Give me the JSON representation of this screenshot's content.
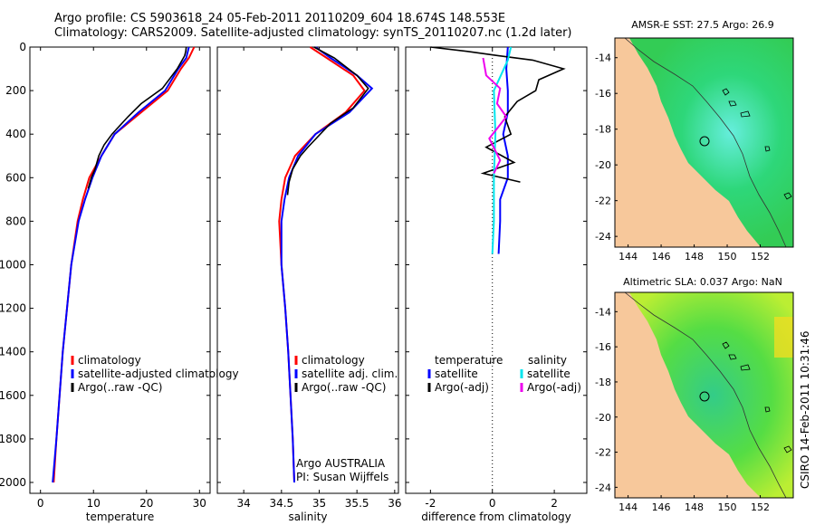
{
  "header": {
    "line1": "Argo profile: CS 5903618_24 05-Feb-2011 20110209_604 18.674S 148.553E",
    "line2": "Climatology: CARS2009. Satellite-adjusted climatology: synTS_20110207.nc (1.2d later)"
  },
  "side_stamp": "CSIRO 14-Feb-2011 10:31:46",
  "colors": {
    "clim": "#ff0000",
    "sat": "#0000ff",
    "argo": "#000000",
    "sat_sal": "#00e5ee",
    "argo_sal": "#ee00ee",
    "land": "#f7c89b"
  },
  "y_axis": {
    "ticks": [
      "0",
      "200",
      "400",
      "600",
      "800",
      "1000",
      "1200",
      "1400",
      "1600",
      "1800",
      "2000"
    ]
  },
  "panels": {
    "temperature": {
      "xlabel": "temperature",
      "ticks": [
        "0",
        "10",
        "20",
        "30"
      ],
      "legend": [
        "climatology",
        "satellite-adjusted climatology",
        "Argo(..raw -QC)"
      ]
    },
    "salinity": {
      "xlabel": "salinity",
      "ticks": [
        "34",
        "34.5",
        "35",
        "35.5",
        "36"
      ],
      "legend": [
        "climatology",
        "satellite adj. clim.",
        "Argo(..raw -QC)"
      ],
      "note1": "Argo AUSTRALIA",
      "note2": "PI: Susan Wijffels"
    },
    "difference": {
      "xlabel": "difference from climatology",
      "ticks": [
        "-2",
        "0",
        "2"
      ],
      "legend_head_t": "temperature",
      "legend_head_s": "salinity",
      "legend_t": [
        "satellite",
        "Argo(-adj)"
      ],
      "legend_s": [
        "satellite",
        "Argo(-adj)"
      ]
    }
  },
  "maps": {
    "sst": {
      "title": "AMSR-E SST: 27.5 Argo: 26.9"
    },
    "sla": {
      "title": "Altimetric SLA: 0.037 Argo: NaN"
    },
    "lon_ticks": [
      "144",
      "146",
      "148",
      "150",
      "152"
    ],
    "lat_ticks": [
      "-14",
      "-16",
      "-18",
      "-20",
      "-22",
      "-24"
    ]
  },
  "chart_data": [
    {
      "type": "line",
      "xlabel": "temperature",
      "ylim": [
        2050,
        0
      ],
      "xlim": [
        -2,
        32
      ],
      "series": [
        {
          "name": "climatology",
          "points": [
            [
              29,
              0
            ],
            [
              28,
              50
            ],
            [
              26.5,
              100
            ],
            [
              24,
              200
            ],
            [
              19,
              300
            ],
            [
              14,
              400
            ],
            [
              11.5,
              500
            ],
            [
              9.2,
              600
            ],
            [
              8,
              700
            ],
            [
              7,
              800
            ],
            [
              5.8,
              1000
            ],
            [
              5,
              1200
            ],
            [
              4.2,
              1400
            ],
            [
              3.6,
              1600
            ],
            [
              3,
              1800
            ],
            [
              2.5,
              2000
            ]
          ]
        },
        {
          "name": "satellite-adjusted climatology",
          "points": [
            [
              28,
              0
            ],
            [
              27.5,
              50
            ],
            [
              26,
              100
            ],
            [
              23.5,
              200
            ],
            [
              18.5,
              300
            ],
            [
              14,
              400
            ],
            [
              11.5,
              500
            ],
            [
              9.8,
              600
            ],
            [
              8.4,
              700
            ],
            [
              7.2,
              800
            ],
            [
              5.8,
              1000
            ],
            [
              5,
              1200
            ],
            [
              4.2,
              1400
            ],
            [
              3.6,
              1600
            ],
            [
              3,
              1800
            ],
            [
              2.3,
              2000
            ]
          ]
        },
        {
          "name": "Argo(..raw -QC)",
          "points": [
            [
              27.5,
              0
            ],
            [
              27.4,
              20
            ],
            [
              27.2,
              40
            ],
            [
              25.8,
              100
            ],
            [
              23,
              190
            ],
            [
              19,
              260
            ],
            [
              16.5,
              320
            ],
            [
              13.5,
              400
            ],
            [
              12,
              450
            ],
            [
              11,
              500
            ],
            [
              10.3,
              560
            ],
            [
              9.6,
              600
            ],
            [
              9,
              650
            ]
          ]
        }
      ]
    },
    {
      "type": "line",
      "xlabel": "salinity",
      "ylim": [
        2050,
        0
      ],
      "xlim": [
        33.65,
        36.05
      ],
      "series": [
        {
          "name": "climatology",
          "points": [
            [
              34.88,
              0
            ],
            [
              35.1,
              50
            ],
            [
              35.45,
              130
            ],
            [
              35.6,
              200
            ],
            [
              35.35,
              300
            ],
            [
              34.95,
              400
            ],
            [
              34.68,
              500
            ],
            [
              34.55,
              600
            ],
            [
              34.5,
              700
            ],
            [
              34.47,
              800
            ],
            [
              34.5,
              1000
            ],
            [
              34.55,
              1200
            ],
            [
              34.59,
              1400
            ],
            [
              34.62,
              1600
            ],
            [
              34.65,
              1800
            ],
            [
              34.67,
              2000
            ]
          ]
        },
        {
          "name": "satellite adj. clim.",
          "points": [
            [
              34.95,
              0
            ],
            [
              35.15,
              50
            ],
            [
              35.5,
              130
            ],
            [
              35.7,
              190
            ],
            [
              35.4,
              300
            ],
            [
              34.95,
              400
            ],
            [
              34.72,
              500
            ],
            [
              34.6,
              600
            ],
            [
              34.54,
              700
            ],
            [
              34.5,
              800
            ],
            [
              34.5,
              1000
            ],
            [
              34.55,
              1200
            ],
            [
              34.59,
              1400
            ],
            [
              34.62,
              1600
            ],
            [
              34.65,
              1800
            ],
            [
              34.67,
              2000
            ]
          ]
        },
        {
          "name": "Argo(..raw -QC)",
          "points": [
            [
              34.93,
              0
            ],
            [
              35.2,
              50
            ],
            [
              35.5,
              130
            ],
            [
              35.65,
              190
            ],
            [
              35.45,
              280
            ],
            [
              35.15,
              350
            ],
            [
              34.85,
              460
            ],
            [
              34.75,
              500
            ],
            [
              34.65,
              560
            ],
            [
              34.6,
              620
            ],
            [
              34.58,
              680
            ]
          ]
        }
      ]
    },
    {
      "type": "line",
      "xlabel": "difference from climatology",
      "ylim": [
        2050,
        0
      ],
      "xlim": [
        -2.8,
        3.05
      ],
      "series": [
        {
          "name": "satellite (temperature)",
          "points": [
            [
              0.5,
              0
            ],
            [
              0.45,
              100
            ],
            [
              0.5,
              200
            ],
            [
              0.5,
              300
            ],
            [
              0.35,
              400
            ],
            [
              0.5,
              500
            ],
            [
              0.5,
              600
            ],
            [
              0.25,
              700
            ],
            [
              0.25,
              800
            ],
            [
              0.2,
              950
            ]
          ]
        },
        {
          "name": "Argo(-adj) (temperature)",
          "points": [
            [
              -2,
              0
            ],
            [
              -0.8,
              20
            ],
            [
              0.2,
              40
            ],
            [
              1.3,
              60
            ],
            [
              2.3,
              100
            ],
            [
              1.5,
              150
            ],
            [
              1.4,
              200
            ],
            [
              0.8,
              250
            ],
            [
              0.4,
              320
            ],
            [
              0.6,
              400
            ],
            [
              -0.2,
              460
            ],
            [
              0.7,
              530
            ],
            [
              -0.3,
              580
            ],
            [
              0.9,
              620
            ]
          ]
        },
        {
          "name": "satellite (salinity)",
          "points": [
            [
              0.6,
              0
            ],
            [
              0.5,
              60
            ],
            [
              0.05,
              200
            ],
            [
              0.1,
              400
            ],
            [
              0.05,
              600
            ],
            [
              0.05,
              800
            ],
            [
              0,
              950
            ]
          ]
        },
        {
          "name": "Argo(-adj) (salinity)",
          "points": [
            [
              -0.3,
              50
            ],
            [
              -0.2,
              130
            ],
            [
              0.25,
              190
            ],
            [
              0.15,
              260
            ],
            [
              0.45,
              320
            ],
            [
              -0.1,
              420
            ],
            [
              0.25,
              520
            ],
            [
              0.05,
              580
            ]
          ]
        }
      ]
    }
  ]
}
